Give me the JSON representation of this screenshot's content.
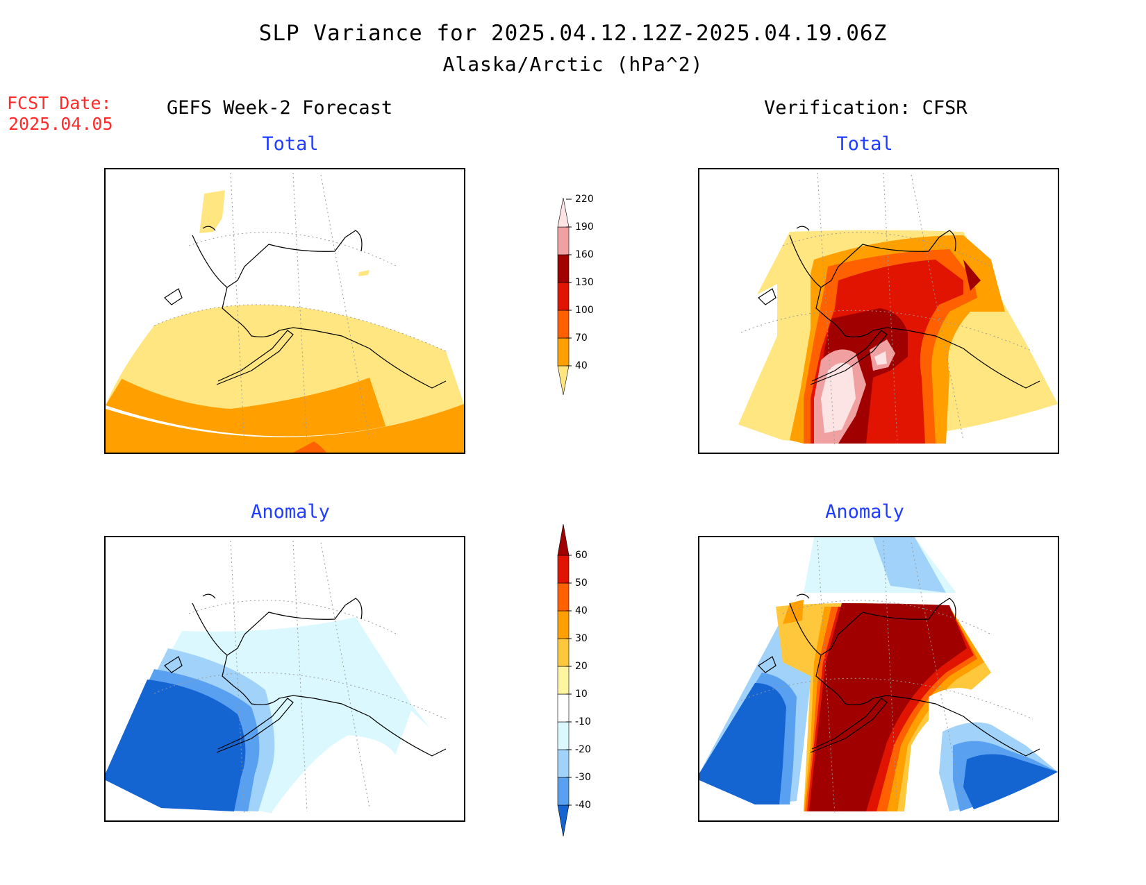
{
  "header": {
    "title": "SLP Variance for 2025.04.12.12Z-2025.04.19.06Z",
    "subtitle": "Alaska/Arctic (hPa^2)",
    "fcst_label": "FCST Date:",
    "fcst_date": "2025.04.05",
    "left_heading": "GEFS Week-2 Forecast",
    "right_heading": "Verification: CFSR"
  },
  "panels": {
    "forecast_total": "Total",
    "verif_total": "Total",
    "forecast_anomaly": "Anomaly",
    "verif_anomaly": "Anomaly"
  },
  "colorbars": {
    "total": {
      "labels": [
        "40",
        "70",
        "100",
        "130",
        "160",
        "190",
        "220"
      ],
      "colors": [
        "#ffe680",
        "#ffa000",
        "#ff6000",
        "#e01400",
        "#a00000",
        "#f0a0a0",
        "#fde4e4"
      ]
    },
    "anomaly": {
      "labels": [
        "-40",
        "-30",
        "-20",
        "-10",
        "10",
        "20",
        "30",
        "40",
        "50",
        "60"
      ],
      "colors": [
        "#1464d2",
        "#5aa0f0",
        "#a0d2fa",
        "#dcf8ff",
        "#ffffff",
        "#fff5a0",
        "#ffc83c",
        "#ffa000",
        "#ff6000",
        "#e01400",
        "#a00000"
      ]
    }
  }
}
